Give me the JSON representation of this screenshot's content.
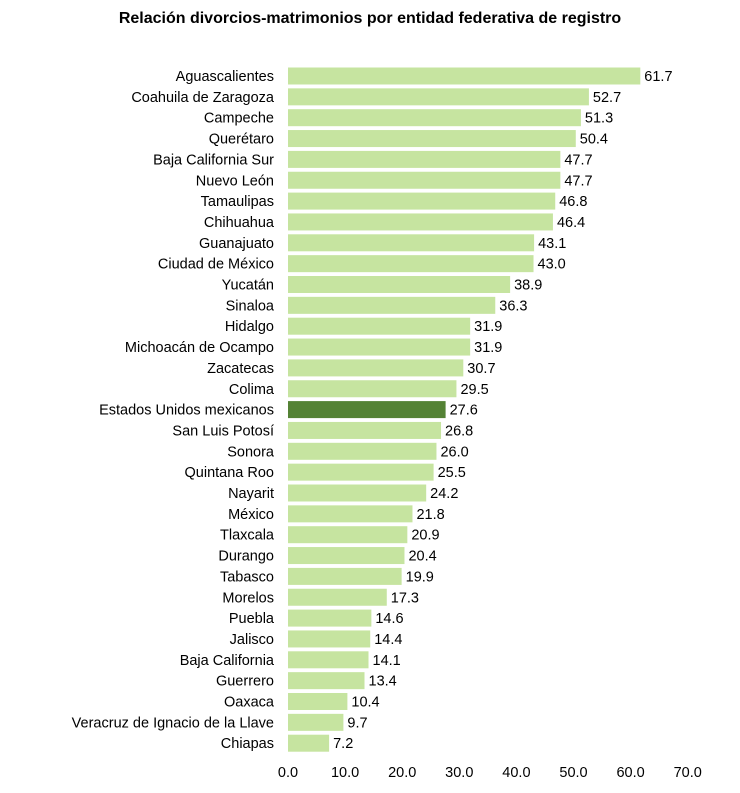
{
  "chart_data": {
    "type": "bar",
    "orientation": "horizontal",
    "title": "Relación divorcios-matrimonios por entidad federativa de registro",
    "xlabel": "",
    "ylabel": "",
    "xlim": [
      0,
      70
    ],
    "ticks": [
      "0.0",
      "10.0",
      "20.0",
      "30.0",
      "40.0",
      "50.0",
      "60.0",
      "70.0"
    ],
    "tick_values": [
      0,
      10,
      20,
      30,
      40,
      50,
      60,
      70
    ],
    "grid": false,
    "legend": "none",
    "categories": [
      "Aguascalientes",
      "Coahuila de Zaragoza",
      "Campeche",
      "Querétaro",
      "Baja California Sur",
      "Nuevo León",
      "Tamaulipas",
      "Chihuahua",
      "Guanajuato",
      "Ciudad de México",
      "Yucatán",
      "Sinaloa",
      "Hidalgo",
      "Michoacán de Ocampo",
      "Zacatecas",
      "Colima",
      "Estados Unidos mexicanos",
      "San Luis Potosí",
      "Sonora",
      "Quintana Roo",
      "Nayarit",
      "México",
      "Tlaxcala",
      "Durango",
      "Tabasco",
      "Morelos",
      "Puebla",
      "Jalisco",
      "Baja California",
      "Guerrero",
      "Oaxaca",
      "Veracruz de Ignacio de la Llave",
      "Chiapas"
    ],
    "values": [
      61.7,
      52.7,
      51.3,
      50.4,
      47.7,
      47.7,
      46.8,
      46.4,
      43.1,
      43.0,
      38.9,
      36.3,
      31.9,
      31.9,
      30.7,
      29.5,
      27.6,
      26.8,
      26.0,
      25.5,
      24.2,
      21.8,
      20.9,
      20.4,
      19.9,
      17.3,
      14.6,
      14.4,
      14.1,
      13.4,
      10.4,
      9.7,
      7.2
    ],
    "value_labels": [
      "61.7",
      "52.7",
      "51.3",
      "50.4",
      "47.7",
      "47.7",
      "46.8",
      "46.4",
      "43.1",
      "43.0",
      "38.9",
      "36.3",
      "31.9",
      "31.9",
      "30.7",
      "29.5",
      "27.6",
      "26.8",
      "26.0",
      "25.5",
      "24.2",
      "21.8",
      "20.9",
      "20.4",
      "19.9",
      "17.3",
      "14.6",
      "14.4",
      "14.1",
      "13.4",
      "10.4",
      "9.7",
      "7.2"
    ],
    "highlight_category": "Estados Unidos mexicanos",
    "colors": {
      "bar": "#c6e4a0",
      "highlight": "#548235",
      "text": "#000000"
    }
  }
}
